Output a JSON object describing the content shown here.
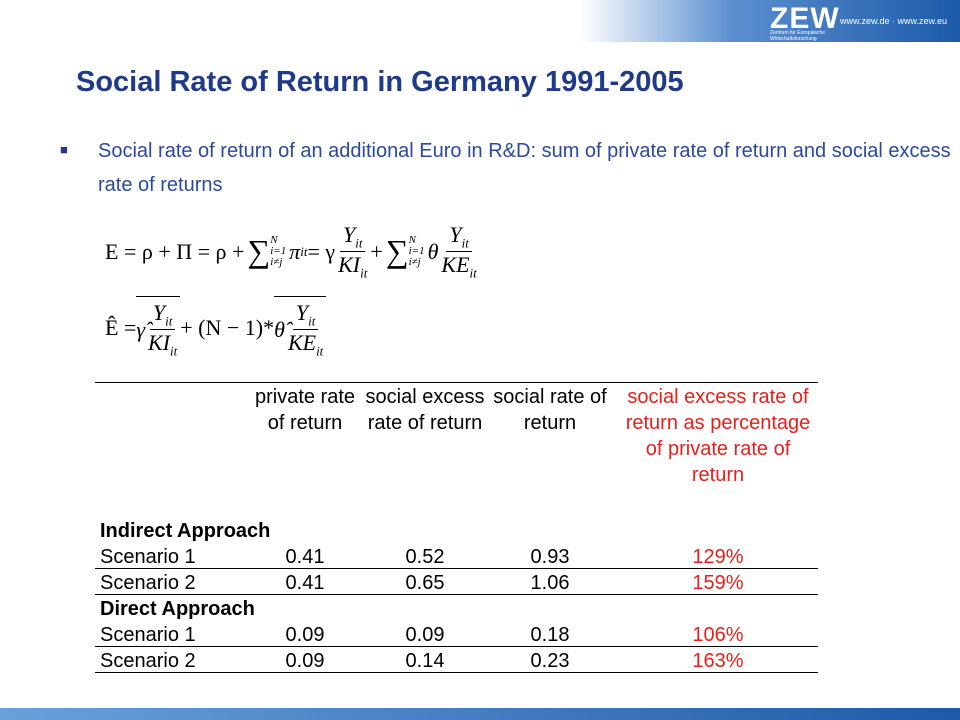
{
  "header": {
    "logo": "ZEW",
    "logo_subtitle": "Zentrum für Europäische Wirtschaftsforschung GmbH",
    "urls": "www.zew.de · www.zew.eu"
  },
  "title": "Social Rate of Return in Germany 1991-2005",
  "bullet": {
    "marker": "■",
    "text": "Social rate of return of an additional Euro in R&D: sum of private rate of return and social excess rate of returns"
  },
  "formula_1": {
    "lhs": "E = ρ + Π = ρ +",
    "sum": "∑",
    "sum_top": "N",
    "sum_bottom": "i=1",
    "sum_bottom_2": "i≠j",
    "pi": "π",
    "pi_sub": "it",
    "eq": "= γ",
    "num": "Y",
    "num_sub": "it",
    "den_1": "KI",
    "den_sub": "it",
    "plus": "+",
    "theta": "θ",
    "den_2": "KE"
  },
  "formula_2": {
    "lhs": "Ê =",
    "gamma": "γ̂",
    "num": "Y",
    "num_sub": "it",
    "den_1": "KI",
    "den_sub": "it",
    "mid": "+ (N − 1)*",
    "theta": "θ̂",
    "den_2": "KE"
  },
  "table": {
    "headers": [
      "private rate of return",
      "social excess rate of return",
      "social rate of return",
      "social excess rate of return as percentage of private rate of return"
    ],
    "sections": [
      {
        "name": "Indirect Approach",
        "rows": [
          [
            "Scenario 1",
            "0.41",
            "0.52",
            "0.93",
            "129%"
          ],
          [
            "Scenario 2",
            "0.41",
            "0.65",
            "1.06",
            "159%"
          ]
        ]
      },
      {
        "name": "Direct Approach",
        "rows": [
          [
            "Scenario 1",
            "0.09",
            "0.09",
            "0.18",
            "106%"
          ],
          [
            "Scenario 2",
            "0.09",
            "0.14",
            "0.23",
            "163%"
          ]
        ]
      }
    ]
  }
}
